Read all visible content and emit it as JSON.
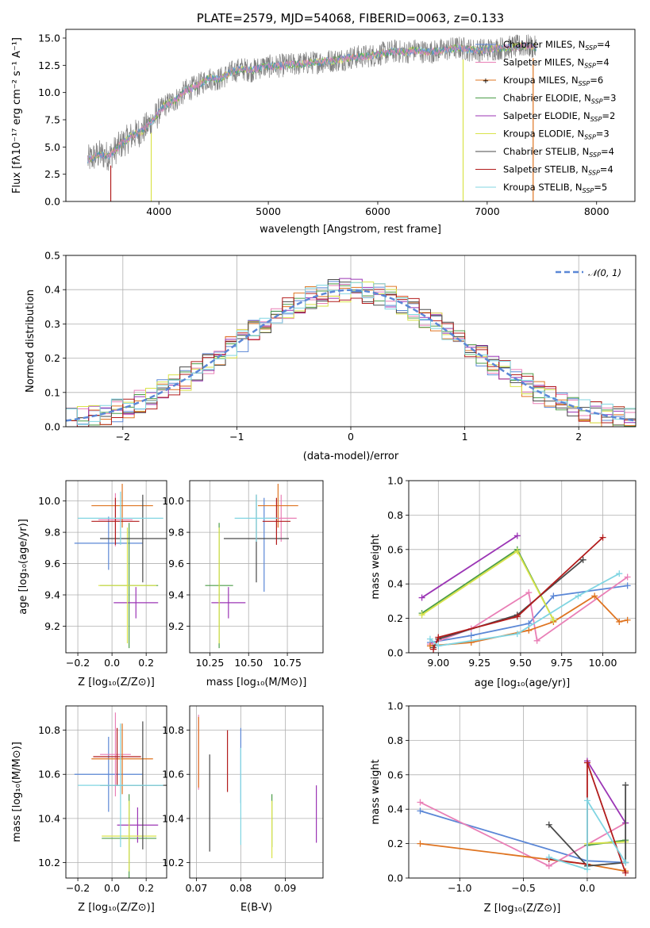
{
  "colors": {
    "Chabrier MILES": "#5b87d6",
    "Salpeter MILES": "#e97fb6",
    "Kroupa MILES": "#df7421",
    "Chabrier ELODIE": "#4c9d48",
    "Salpeter ELODIE": "#9b35b5",
    "Kroupa ELODIE": "#d9e34a",
    "Chabrier STELIB": "#4a4a4a",
    "Salpeter STELIB": "#b21c1c",
    "Kroupa STELIB": "#80d5e2",
    "gauss": "#5b87d6",
    "grid": "#b0b0b0"
  },
  "chart_data": [
    {
      "id": "spectrum",
      "type": "line",
      "title": "PLATE=2579, MJD=54068, FIBERID=0063, z=0.133",
      "xlabel": "wavelength [Angstrom, rest frame]",
      "ylabel": "Flux [fλ10⁻¹⁷ erg cm⁻² s⁻¹ A⁻¹]",
      "xlim": [
        3150,
        8350
      ],
      "ylim": [
        0,
        15.8
      ],
      "xticks": [
        "4000",
        "5000",
        "6000",
        "7000",
        "8000"
      ],
      "yticks": [
        "0.0",
        "2.5",
        "5.0",
        "7.5",
        "10.0",
        "12.5",
        "15.0"
      ],
      "grid": false,
      "legend_position": "top-right",
      "legend": [
        {
          "label": "Chabrier MILES, N",
          "sub": "SSP",
          "eq": "=4"
        },
        {
          "label": "Salpeter MILES, N",
          "sub": "SSP",
          "eq": "=4"
        },
        {
          "label": "Kroupa MILES, N",
          "sub": "SSP",
          "eq": "=6"
        },
        {
          "label": "Chabrier ELODIE, N",
          "sub": "SSP",
          "eq": "=3"
        },
        {
          "label": "Salpeter ELODIE, N",
          "sub": "SSP",
          "eq": "=2"
        },
        {
          "label": "Kroupa ELODIE, N",
          "sub": "SSP",
          "eq": "=3"
        },
        {
          "label": "Chabrier STELIB, N",
          "sub": "SSP",
          "eq": "=4"
        },
        {
          "label": "Salpeter STELIB, N",
          "sub": "SSP",
          "eq": "=4"
        },
        {
          "label": "Kroupa STELIB, N",
          "sub": "SSP",
          "eq": "=5"
        }
      ],
      "data_trend": {
        "x": [
          3350,
          3450,
          3550,
          3650,
          3750,
          3850,
          3950,
          4050,
          4150,
          4250,
          4350,
          4450,
          4550,
          4650,
          4750,
          4850,
          4950,
          5050,
          5150,
          5250,
          5350,
          5450,
          5550,
          5650,
          5750,
          5850,
          5950,
          6050,
          6150,
          6250,
          6350,
          6450,
          6550,
          6650,
          6750,
          6850,
          6950,
          7050,
          7150,
          7250,
          7350,
          7450
        ],
        "y": [
          3.8,
          4.3,
          4.2,
          5.2,
          6.0,
          6.5,
          7.5,
          8.8,
          9.3,
          10.2,
          10.6,
          11.3,
          11.2,
          11.8,
          12.2,
          12.0,
          12.4,
          12.4,
          12.5,
          12.6,
          12.7,
          12.8,
          12.9,
          13.0,
          13.2,
          13.3,
          13.4,
          13.6,
          13.8,
          13.7,
          13.9,
          13.7,
          13.8,
          14.0,
          14.1,
          13.9,
          13.9,
          14.0,
          14.1,
          14.2,
          14.3,
          14.1
        ]
      },
      "model_dips_x": [
        3560,
        3930,
        6780,
        7420
      ]
    },
    {
      "id": "residuals",
      "type": "line",
      "xlabel": "(data-model)/error",
      "ylabel": "Normed distribution",
      "xlim": [
        -2.5,
        2.5
      ],
      "ylim": [
        0,
        0.5
      ],
      "xticks": [
        "−2",
        "−1",
        "0",
        "1",
        "2"
      ],
      "yticks": [
        "0.0",
        "0.1",
        "0.2",
        "0.3",
        "0.4",
        "0.5"
      ],
      "grid": true,
      "legend_position": "top-right",
      "legend_label": "𝒩(0, 1)",
      "gauss_mean": 0,
      "gauss_sigma": 1
    },
    {
      "id": "age-vs-Z",
      "type": "scatter",
      "xlabel": "Z [log₁₀(Z/Z⊙)]",
      "ylabel": "age  [log₁₀(age/yr)]",
      "xlim": [
        -0.27,
        0.32
      ],
      "ylim": [
        9.03,
        10.13
      ],
      "xticks": [
        "−0.2",
        "0.0",
        "0.2"
      ],
      "yticks": [
        "9.2",
        "9.4",
        "9.6",
        "9.8",
        "10.0"
      ],
      "grid": true,
      "points": [
        {
          "model": "Chabrier MILES",
          "x": -0.02,
          "y": 9.73,
          "xerr": 0.2,
          "yerr": 0.17
        },
        {
          "model": "Salpeter MILES",
          "x": 0.02,
          "y": 9.88,
          "xerr": 0.1,
          "yerr": 0.17
        },
        {
          "model": "Kroupa MILES",
          "x": 0.06,
          "y": 9.97,
          "xerr": 0.18,
          "yerr": 0.14
        },
        {
          "model": "Chabrier ELODIE",
          "x": 0.1,
          "y": 9.46,
          "xerr": 0.17,
          "yerr": 0.4
        },
        {
          "model": "Salpeter ELODIE",
          "x": 0.14,
          "y": 9.35,
          "xerr": 0.13,
          "yerr": 0.1
        },
        {
          "model": "Kroupa ELODIE",
          "x": 0.09,
          "y": 9.46,
          "xerr": 0.17,
          "yerr": 0.37
        },
        {
          "model": "Chabrier STELIB",
          "x": 0.18,
          "y": 9.76,
          "xerr": 0.25,
          "yerr": 0.28
        },
        {
          "model": "Salpeter STELIB",
          "x": 0.02,
          "y": 9.87,
          "xerr": 0.14,
          "yerr": 0.15
        },
        {
          "model": "Kroupa STELIB",
          "x": 0.05,
          "y": 9.89,
          "xerr": 0.25,
          "yerr": 0.17
        }
      ]
    },
    {
      "id": "age-vs-mass",
      "type": "scatter",
      "xlabel": "mass [log₁₀(M/M⊙)]",
      "ylabel": "",
      "xlim": [
        10.12,
        10.98
      ],
      "ylim": [
        9.03,
        10.13
      ],
      "xticks": [
        "10.25",
        "10.50",
        "10.75"
      ],
      "yticks": [
        "9.2",
        "9.4",
        "9.6",
        "9.8",
        "10.0"
      ],
      "grid": true,
      "points": [
        {
          "model": "Chabrier MILES",
          "x": 10.6,
          "y": 9.72,
          "xerr": 0.0,
          "yerr": 0.3
        },
        {
          "model": "Salpeter MILES",
          "x": 10.71,
          "y": 9.89,
          "xerr": 0.1,
          "yerr": 0.15
        },
        {
          "model": "Kroupa MILES",
          "x": 10.69,
          "y": 9.97,
          "xerr": 0.13,
          "yerr": 0.14
        },
        {
          "model": "Chabrier ELODIE",
          "x": 10.31,
          "y": 9.46,
          "xerr": 0.09,
          "yerr": 0.4
        },
        {
          "model": "Salpeter ELODIE",
          "x": 10.37,
          "y": 9.35,
          "xerr": 0.11,
          "yerr": 0.1
        },
        {
          "model": "Kroupa ELODIE",
          "x": 10.31,
          "y": 9.46,
          "xerr": 0.0,
          "yerr": 0.37
        },
        {
          "model": "Chabrier STELIB",
          "x": 10.55,
          "y": 9.76,
          "xerr": 0.21,
          "yerr": 0.28
        },
        {
          "model": "Salpeter STELIB",
          "x": 10.68,
          "y": 9.87,
          "xerr": 0.09,
          "yerr": 0.15
        },
        {
          "model": "Kroupa STELIB",
          "x": 10.55,
          "y": 9.89,
          "xerr": 0.14,
          "yerr": 0.15
        }
      ]
    },
    {
      "id": "weight-vs-age",
      "type": "line",
      "xlabel": "age  [log₁₀(age/yr)]",
      "ylabel": "mass weight",
      "xlim": [
        8.82,
        10.2
      ],
      "ylim": [
        0,
        1
      ],
      "xticks": [
        "9.00",
        "9.25",
        "9.50",
        "9.75",
        "10.00"
      ],
      "yticks": [
        "0.0",
        "0.2",
        "0.4",
        "0.6",
        "0.8",
        "1.0"
      ],
      "grid": true,
      "series": [
        {
          "model": "Chabrier MILES",
          "x": [
            8.95,
            9.2,
            9.55,
            9.7,
            10.15
          ],
          "y": [
            0.06,
            0.1,
            0.17,
            0.33,
            0.39
          ]
        },
        {
          "model": "Salpeter MILES",
          "x": [
            8.95,
            9.2,
            9.55,
            9.6,
            10.15
          ],
          "y": [
            0.05,
            0.14,
            0.35,
            0.07,
            0.44
          ]
        },
        {
          "model": "Kroupa MILES",
          "x": [
            8.95,
            9.2,
            9.55,
            9.7,
            9.95,
            10.1,
            10.15
          ],
          "y": [
            0.04,
            0.06,
            0.13,
            0.18,
            0.33,
            0.18,
            0.19
          ]
        },
        {
          "model": "Chabrier ELODIE",
          "x": [
            8.9,
            9.48,
            9.7
          ],
          "y": [
            0.23,
            0.6,
            0.19
          ]
        },
        {
          "model": "Salpeter ELODIE",
          "x": [
            8.9,
            9.48
          ],
          "y": [
            0.32,
            0.68
          ]
        },
        {
          "model": "Kroupa ELODIE",
          "x": [
            8.9,
            9.48,
            9.7
          ],
          "y": [
            0.22,
            0.59,
            0.19
          ]
        },
        {
          "model": "Chabrier STELIB",
          "x": [
            8.97,
            9.0,
            9.48,
            9.88
          ],
          "y": [
            0.03,
            0.08,
            0.22,
            0.54
          ]
        },
        {
          "model": "Salpeter STELIB",
          "x": [
            8.97,
            9.0,
            9.48,
            10.0
          ],
          "y": [
            0.02,
            0.09,
            0.21,
            0.67
          ]
        },
        {
          "model": "Kroupa STELIB",
          "x": [
            8.95,
            9.0,
            9.48,
            9.85,
            10.1
          ],
          "y": [
            0.08,
            0.04,
            0.11,
            0.33,
            0.46
          ]
        }
      ]
    },
    {
      "id": "mass-vs-Z",
      "type": "scatter",
      "xlabel": "Z [log₁₀(Z/Z⊙)]",
      "ylabel": "mass [log₁₀(M/M⊙)]",
      "xlim": [
        -0.27,
        0.32
      ],
      "ylim": [
        10.13,
        10.91
      ],
      "xticks": [
        "−0.2",
        "0.0",
        "0.2"
      ],
      "yticks": [
        "10.2",
        "10.4",
        "10.6",
        "10.8"
      ],
      "grid": true,
      "points": [
        {
          "model": "Chabrier MILES",
          "x": -0.02,
          "y": 10.6,
          "xerr": 0.2,
          "yerr": 0.17
        },
        {
          "model": "Salpeter MILES",
          "x": 0.02,
          "y": 10.69,
          "xerr": 0.09,
          "yerr": 0.19
        },
        {
          "model": "Kroupa MILES",
          "x": 0.06,
          "y": 10.67,
          "xerr": 0.18,
          "yerr": 0.16
        },
        {
          "model": "Chabrier ELODIE",
          "x": 0.1,
          "y": 10.31,
          "xerr": 0.16,
          "yerr": 0.2
        },
        {
          "model": "Salpeter ELODIE",
          "x": 0.15,
          "y": 10.37,
          "xerr": 0.12,
          "yerr": 0.08
        },
        {
          "model": "Kroupa ELODIE",
          "x": 0.1,
          "y": 10.32,
          "xerr": 0.16,
          "yerr": 0.16
        },
        {
          "model": "Chabrier STELIB",
          "x": 0.18,
          "y": 10.55,
          "xerr": 0.25,
          "yerr": 0.29
        },
        {
          "model": "Salpeter STELIB",
          "x": 0.03,
          "y": 10.68,
          "xerr": 0.14,
          "yerr": 0.13
        },
        {
          "model": "Kroupa STELIB",
          "x": 0.05,
          "y": 10.55,
          "xerr": 0.25,
          "yerr": 0.28
        }
      ]
    },
    {
      "id": "mass-vs-ebv",
      "type": "scatter",
      "xlabel": "E(B-V)",
      "ylabel": "",
      "xlim": [
        0.0685,
        0.0985
      ],
      "ylim": [
        10.13,
        10.91
      ],
      "xticks": [
        "0.07",
        "0.08",
        "0.09"
      ],
      "yticks": [
        "10.2",
        "10.4",
        "10.6",
        "10.8"
      ],
      "grid": true,
      "points": [
        {
          "model": "Chabrier MILES",
          "x": 0.08,
          "y": 10.64,
          "xerr": 0.0,
          "yerr": 0.17
        },
        {
          "model": "Salpeter MILES",
          "x": 0.0705,
          "y": 10.7,
          "xerr": 0.0,
          "yerr": 0.17
        },
        {
          "model": "Kroupa MILES",
          "x": 0.0705,
          "y": 10.7,
          "xerr": 0.0,
          "yerr": 0.16
        },
        {
          "model": "Chabrier ELODIE",
          "x": 0.087,
          "y": 10.39,
          "xerr": 0.0,
          "yerr": 0.12
        },
        {
          "model": "Salpeter ELODIE",
          "x": 0.097,
          "y": 10.42,
          "xerr": 0.0,
          "yerr": 0.13
        },
        {
          "model": "Kroupa ELODIE",
          "x": 0.087,
          "y": 10.35,
          "xerr": 0.0,
          "yerr": 0.13
        },
        {
          "model": "Chabrier STELIB",
          "x": 0.073,
          "y": 10.47,
          "xerr": 0.0,
          "yerr": 0.22
        },
        {
          "model": "Salpeter STELIB",
          "x": 0.077,
          "y": 10.66,
          "xerr": 0.0,
          "yerr": 0.14
        },
        {
          "model": "Kroupa STELIB",
          "x": 0.08,
          "y": 10.5,
          "xerr": 0.0,
          "yerr": 0.22
        }
      ]
    },
    {
      "id": "weight-vs-Z",
      "type": "line",
      "xlabel": "Z [log₁₀(Z/Z⊙)]",
      "ylabel": "mass weight",
      "xlim": [
        -1.4,
        0.38
      ],
      "ylim": [
        0,
        1
      ],
      "xticks": [
        "−1.0",
        "−0.5",
        "0.0"
      ],
      "yticks": [
        "0.0",
        "0.2",
        "0.4",
        "0.6",
        "0.8",
        "1.0"
      ],
      "grid": true,
      "series": [
        {
          "model": "Chabrier MILES",
          "x": [
            -1.31,
            0.0,
            0.3
          ],
          "y": [
            0.39,
            0.1,
            0.09
          ]
        },
        {
          "model": "Salpeter MILES",
          "x": [
            -1.31,
            -0.3,
            0.3
          ],
          "y": [
            0.44,
            0.07,
            0.32
          ]
        },
        {
          "model": "Kroupa MILES",
          "x": [
            -1.31,
            0.0,
            0.3
          ],
          "y": [
            0.2,
            0.08,
            0.04
          ]
        },
        {
          "model": "Chabrier ELODIE",
          "x": [
            0.0,
            0.3
          ],
          "y": [
            0.19,
            0.22
          ]
        },
        {
          "model": "Salpeter ELODIE",
          "x": [
            0.0,
            0.3
          ],
          "y": [
            0.68,
            0.32
          ]
        },
        {
          "model": "Kroupa ELODIE",
          "x": [
            0.0,
            0.3
          ],
          "y": [
            0.2,
            0.21
          ]
        },
        {
          "model": "Chabrier STELIB",
          "x": [
            -0.3,
            0.0,
            0.3,
            0.3
          ],
          "y": [
            0.31,
            0.07,
            0.09,
            0.54
          ]
        },
        {
          "model": "Salpeter STELIB",
          "x": [
            -0.3,
            0.0,
            0.0,
            0.3
          ],
          "y": [
            0.11,
            0.08,
            0.67,
            0.03
          ]
        },
        {
          "model": "Kroupa STELIB",
          "x": [
            -0.3,
            0.0,
            0.0,
            0.3
          ],
          "y": [
            0.12,
            0.05,
            0.45,
            0.09
          ]
        }
      ]
    }
  ]
}
